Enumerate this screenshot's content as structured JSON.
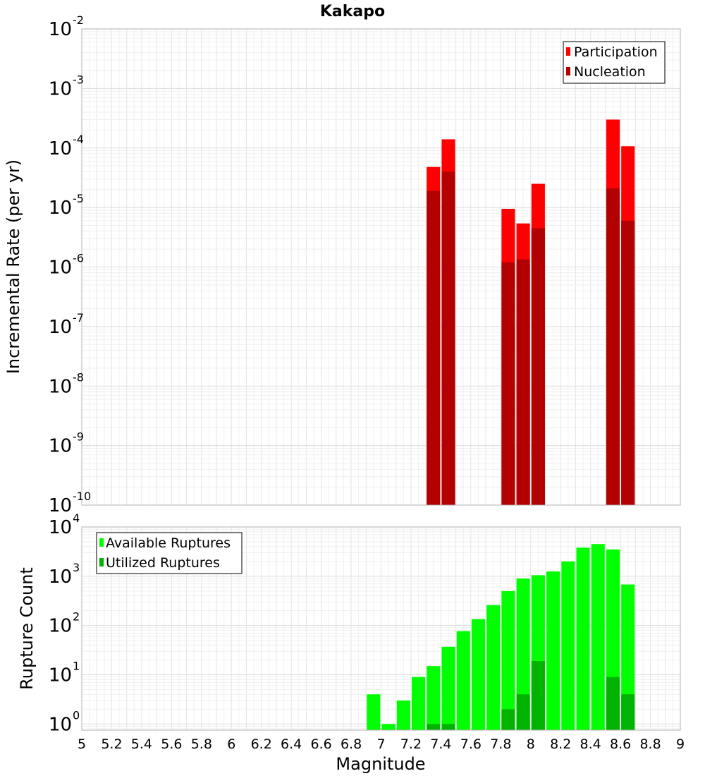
{
  "title": "Kakapo",
  "x_label": "Magnitude",
  "x_ticks": [
    "5",
    "5.2",
    "5.4",
    "5.6",
    "5.8",
    "6",
    "6.2",
    "6.4",
    "6.6",
    "6.8",
    "7",
    "7.2",
    "7.4",
    "7.6",
    "7.8",
    "8",
    "8.2",
    "8.4",
    "8.6",
    "8.8",
    "9"
  ],
  "colors": {
    "participation": "#ff0000",
    "nucleation": "#b30000",
    "available": "#00ff00",
    "utilized": "#00b300",
    "grid": "#e6e6e6",
    "frame": "#b0b0b0"
  },
  "chart_data": [
    {
      "type": "bar",
      "name": "rate",
      "ylabel": "Incremental Rate (per yr)",
      "yscale": "log",
      "xlim": [
        5,
        9
      ],
      "ylim": [
        1e-10,
        0.01
      ],
      "y_ticks": [
        {
          "base": "10",
          "exp": "-10"
        },
        {
          "base": "10",
          "exp": "-9"
        },
        {
          "base": "10",
          "exp": "-8"
        },
        {
          "base": "10",
          "exp": "-7"
        },
        {
          "base": "10",
          "exp": "-6"
        },
        {
          "base": "10",
          "exp": "-5"
        },
        {
          "base": "10",
          "exp": "-4"
        },
        {
          "base": "10",
          "exp": "-3"
        },
        {
          "base": "10",
          "exp": "-2"
        }
      ],
      "legend_position": "top-right",
      "series": [
        {
          "name": "Participation",
          "x": [
            7.35,
            7.45,
            7.85,
            7.95,
            8.05,
            8.55,
            8.65
          ],
          "values": [
            4.8e-05,
            0.00014,
            9.5e-06,
            5.4e-06,
            2.5e-05,
            0.0003,
            0.000107
          ]
        },
        {
          "name": "Nucleation",
          "x": [
            7.35,
            7.45,
            7.85,
            7.95,
            8.05,
            8.55,
            8.65
          ],
          "values": [
            1.9e-05,
            4e-05,
            1.2e-06,
            1.35e-06,
            4.5e-06,
            2.1e-05,
            6e-06
          ]
        }
      ]
    },
    {
      "type": "bar",
      "name": "count",
      "ylabel": "Rupture Count",
      "yscale": "log",
      "xlim": [
        5,
        9
      ],
      "ylim": [
        0.75,
        10000
      ],
      "y_ticks": [
        {
          "base": "10",
          "exp": "0"
        },
        {
          "base": "10",
          "exp": "1"
        },
        {
          "base": "10",
          "exp": "2"
        },
        {
          "base": "10",
          "exp": "3"
        },
        {
          "base": "10",
          "exp": "4"
        }
      ],
      "legend_position": "top-left",
      "series": [
        {
          "name": "Available Ruptures",
          "x": [
            6.95,
            7.05,
            7.15,
            7.25,
            7.35,
            7.45,
            7.55,
            7.65,
            7.75,
            7.85,
            7.95,
            8.05,
            8.15,
            8.25,
            8.35,
            8.45,
            8.55,
            8.65
          ],
          "values": [
            4,
            1,
            3,
            9,
            15,
            37,
            77,
            135,
            260,
            500,
            900,
            1050,
            1250,
            2000,
            3800,
            4500,
            3500,
            680
          ]
        },
        {
          "name": "Utilized Ruptures",
          "x": [
            7.35,
            7.45,
            7.85,
            7.95,
            8.05,
            8.55,
            8.65
          ],
          "values": [
            1,
            1,
            2,
            4,
            19,
            9,
            4
          ]
        }
      ]
    }
  ]
}
